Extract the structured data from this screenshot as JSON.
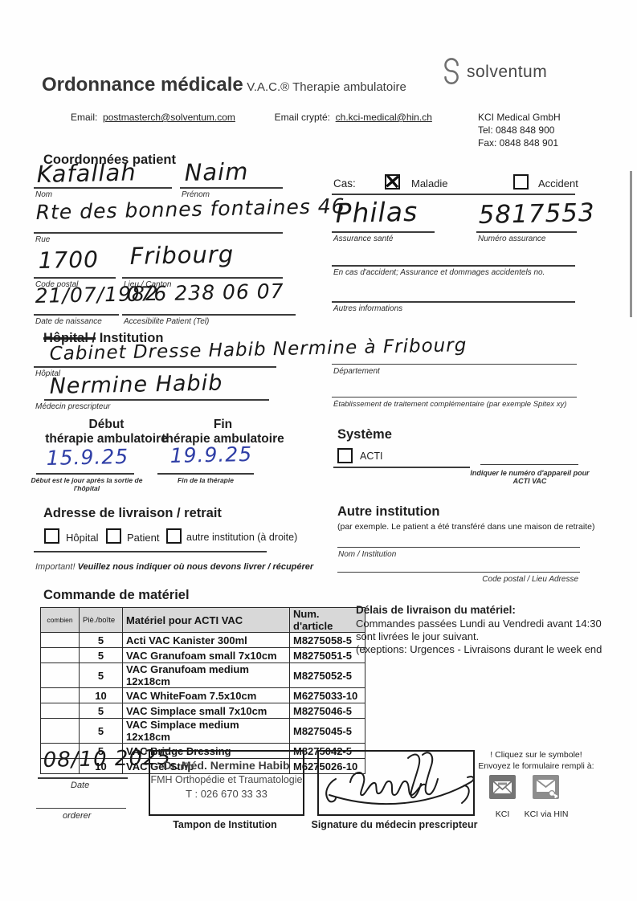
{
  "header": {
    "title": "Ordonnance médicale",
    "subtitle": "V.A.C.® Therapie ambulatoire",
    "email_label": "Email:",
    "email_value": "postmasterch@solventum.com",
    "email_crypte_label": "Email crypté:",
    "email_crypte_value": "ch.kci-medical@hin.ch",
    "logo_text": "solventum",
    "company_name": "KCI Medical GmbH",
    "company_tel": "Tel: 0848 848 900",
    "company_fax": "Fax: 0848 848 901"
  },
  "patient": {
    "section_title": "Coordonnées patient",
    "nom": {
      "value": "Kafallah",
      "label": "Nom"
    },
    "prenom": {
      "value": "Naim",
      "label": "Prénom"
    },
    "rue": {
      "value": "Rte des bonnes fontaines 46",
      "label": "Rue"
    },
    "code_postal": {
      "value": "1700",
      "label": "Code postal"
    },
    "lieu": {
      "value": "Fribourg",
      "label": "Lieu / Canton"
    },
    "naissance": {
      "value": "21/07/1982",
      "label": "Date de naissance"
    },
    "tel": {
      "value": "076 238 06 07",
      "label": "Accesibilite Patient (Tel)"
    }
  },
  "cas": {
    "label": "Cas:",
    "maladie_label": "Maladie",
    "maladie_checked": true,
    "accident_label": "Accident",
    "accident_checked": false,
    "assurance_sante": {
      "value": "Philas",
      "label": "Assurance santé"
    },
    "numero_assurance": {
      "value": "5817553",
      "label": "Numéro assurance"
    },
    "accident_info_label": "En cas d'accident; Assurance et dommages accidentels no.",
    "autres_infos_label": "Autres informations"
  },
  "hopital": {
    "title_struck": "Hôpital /",
    "title_rest": "Institution",
    "hopital": {
      "value": "Cabinet Dresse Habib Nermine à Fribourg",
      "label": "Hôpital"
    },
    "departement_label": "Département",
    "medecin": {
      "value": "Nermine Habib",
      "label": "Médecin prescripteur"
    },
    "etablissement_label": "Établissement de traitement complémentaire (par exemple Spitex xy)"
  },
  "therapie": {
    "debut_title_1": "Début",
    "debut_title_2": "thérapie ambulatoire",
    "debut_value": "15.9.25",
    "debut_caption": "Début est le jour après la sortie de l'hôpital",
    "fin_title_1": "Fin",
    "fin_title_2": "thérapie ambulatoire",
    "fin_value": "19.9.25",
    "fin_caption": "Fin de la thérapie"
  },
  "systeme": {
    "title": "Système",
    "acti_label": "ACTI",
    "acti_checked": false,
    "caption_line1": "Indiquer le numéro d'appareil pour",
    "caption_line2": "ACTI VAC"
  },
  "livraison": {
    "title": "Adresse de livraison / retrait",
    "options": [
      {
        "label": "Hôpital",
        "checked": false
      },
      {
        "label": "Patient",
        "checked": false
      },
      {
        "label": "autre institution (à droite)",
        "checked": false
      }
    ],
    "important_lead": "Important!",
    "important_rest": " Veuillez nous indiquer où nous devons livrer / récupérer"
  },
  "autre_institution": {
    "title": "Autre institution",
    "subtitle": "(par exemple. Le patient a été transféré dans une maison de retraite)",
    "nom_label": "Nom / Institution",
    "adresse_label": "Code postal / Lieu Adresse"
  },
  "commande": {
    "title": "Commande de matériel",
    "table": {
      "headers": [
        "combien",
        "Piè./boîte",
        "Matériel pour ACTI VAC",
        "Num. d'article"
      ],
      "rows": [
        {
          "combien": "",
          "pie": "5",
          "materiel": "Acti VAC Kanister 300ml",
          "num": "M8275058-5"
        },
        {
          "combien": "",
          "pie": "5",
          "materiel": "VAC Granufoam small 7x10cm",
          "num": "M8275051-5"
        },
        {
          "combien": "",
          "pie": "5",
          "materiel": "VAC Granufoam medium 12x18cm",
          "num": "M8275052-5"
        },
        {
          "combien": "",
          "pie": "10",
          "materiel": "VAC WhiteFoam 7.5x10cm",
          "num": "M6275033-10"
        },
        {
          "combien": "",
          "pie": "5",
          "materiel": "VAC Simplace small 7x10cm",
          "num": "M8275046-5"
        },
        {
          "combien": "",
          "pie": "5",
          "materiel": "VAC Simplace medium 12x18cm",
          "num": "M8275045-5"
        },
        {
          "combien": "",
          "pie": "5",
          "materiel": "VAC Bridge Dressing",
          "num": "M8275042-5"
        },
        {
          "combien": "",
          "pie": "10",
          "materiel": "VAC Gel Strip",
          "num": "M6275026-10"
        }
      ]
    }
  },
  "delais": {
    "title": "Délais de livraison du matériel:",
    "line1": "Commandes passées Lundi au Vendredi avant 14:30",
    "line2": "sont livrées le jour suivant.",
    "line3": "(exeptions: Urgences - Livraisons durant le week end"
  },
  "footer": {
    "date_value": "08/10 2025",
    "date_label": "Date",
    "orderer_label": "orderer",
    "stamp_line1": "Dr. Méd. Nermine Habib",
    "stamp_line2": "FMH Orthopédie et Traumatologie",
    "stamp_line3": "T : 026 670 33 33",
    "stamp_caption": "Tampon de Institution",
    "signature_caption": "Signature du médecin prescripteur",
    "click_line1": "! Cliquez sur le symbole!",
    "click_line2": "Envoyez le formulaire rempli à:",
    "icon1_label": "KCI",
    "icon2_label": "KCI via HIN"
  },
  "colors": {
    "ink_blue": "#2f3ea6",
    "table_header_bg": "#d8d8d8"
  }
}
